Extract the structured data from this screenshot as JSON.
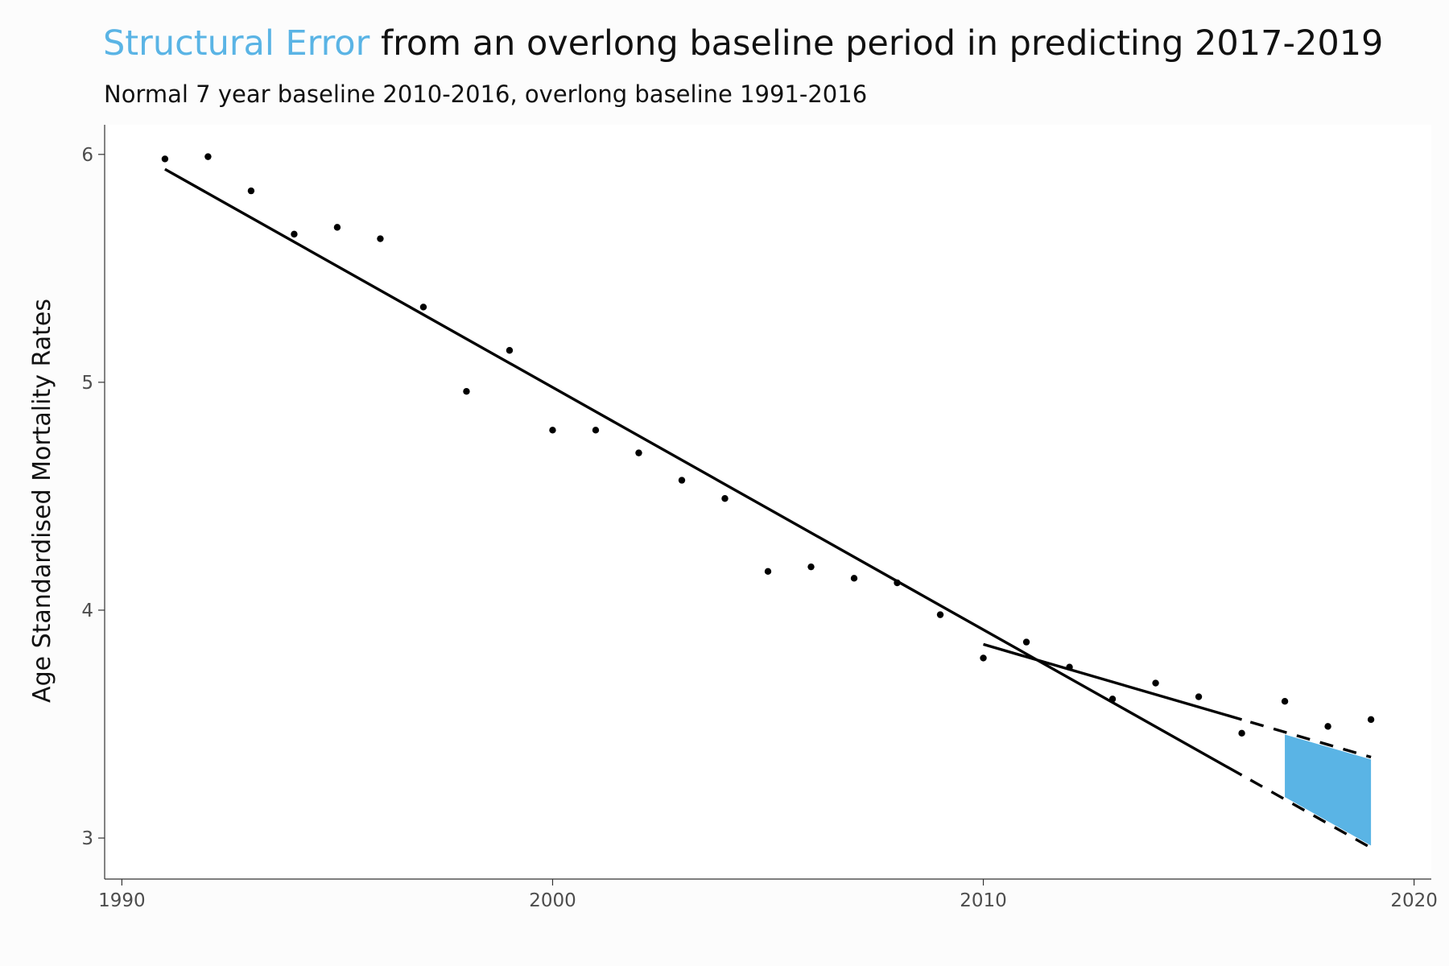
{
  "title": {
    "highlight": "Structural Error",
    "rest": " from an overlong baseline period in predicting 2017-2019"
  },
  "subtitle": "Normal 7 year baseline 2010-2016, overlong baseline 1991-2016",
  "colors": {
    "accent": "#5ab4e5",
    "text": "#111111",
    "axis_text": "#4d4d4d",
    "panel": "#ffffff",
    "background": "#fcfcfc"
  },
  "chart_data": {
    "type": "scatter",
    "title": "Structural Error from an overlong baseline period in predicting 2017-2019",
    "subtitle": "Normal 7 year baseline 2010-2016, overlong baseline 1991-2016",
    "xlabel": "",
    "ylabel": "Age Standardised Mortality Rates",
    "xlim": [
      1989.6,
      2020.4
    ],
    "ylim": [
      2.82,
      6.13
    ],
    "x_ticks": [
      1990,
      2000,
      2010,
      2020
    ],
    "y_ticks": [
      3,
      4,
      5,
      6
    ],
    "grid": false,
    "legend": "none",
    "points": [
      {
        "x": 1991,
        "y": 5.98
      },
      {
        "x": 1992,
        "y": 5.99
      },
      {
        "x": 1993,
        "y": 5.84
      },
      {
        "x": 1994,
        "y": 5.65
      },
      {
        "x": 1995,
        "y": 5.68
      },
      {
        "x": 1996,
        "y": 5.63
      },
      {
        "x": 1997,
        "y": 5.33
      },
      {
        "x": 1998,
        "y": 4.96
      },
      {
        "x": 1999,
        "y": 5.14
      },
      {
        "x": 2000,
        "y": 4.79
      },
      {
        "x": 2001,
        "y": 4.79
      },
      {
        "x": 2002,
        "y": 4.69
      },
      {
        "x": 2003,
        "y": 4.57
      },
      {
        "x": 2004,
        "y": 4.49
      },
      {
        "x": 2005,
        "y": 4.17
      },
      {
        "x": 2006,
        "y": 4.19
      },
      {
        "x": 2007,
        "y": 4.14
      },
      {
        "x": 2008,
        "y": 4.12
      },
      {
        "x": 2009,
        "y": 3.98
      },
      {
        "x": 2010,
        "y": 3.79
      },
      {
        "x": 2011,
        "y": 3.86
      },
      {
        "x": 2012,
        "y": 3.75
      },
      {
        "x": 2013,
        "y": 3.61
      },
      {
        "x": 2014,
        "y": 3.68
      },
      {
        "x": 2015,
        "y": 3.62
      },
      {
        "x": 2016,
        "y": 3.46
      },
      {
        "x": 2017,
        "y": 3.6
      },
      {
        "x": 2018,
        "y": 3.49
      },
      {
        "x": 2019,
        "y": 3.52
      }
    ],
    "lines": [
      {
        "x": [
          1991,
          2016
        ],
        "y": [
          5.935,
          3.276
        ],
        "style": "solid"
      },
      {
        "x": [
          2016.2,
          2019
        ],
        "y": [
          3.255,
          2.957
        ],
        "style": "dashed"
      },
      {
        "x": [
          2010,
          2016
        ],
        "y": [
          3.85,
          3.52
        ],
        "style": "solid"
      },
      {
        "x": [
          2016.2,
          2019
        ],
        "y": [
          3.509,
          3.355
        ],
        "style": "dashed"
      }
    ],
    "error_region": {
      "x": [
        2017,
        2019
      ],
      "upper": [
        3.454,
        3.345
      ],
      "lower": [
        3.18,
        2.967
      ]
    }
  }
}
